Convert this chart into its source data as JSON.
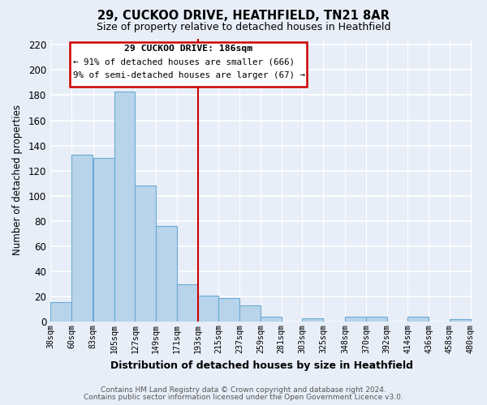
{
  "title": "29, CUCKOO DRIVE, HEATHFIELD, TN21 8AR",
  "subtitle": "Size of property relative to detached houses in Heathfield",
  "xlabel": "Distribution of detached houses by size in Heathfield",
  "ylabel": "Number of detached properties",
  "bar_color": "#b8d4ea",
  "bar_edge_color": "#6aaad4",
  "vline_color": "#cc0000",
  "annotation_title": "29 CUCKOO DRIVE: 186sqm",
  "annotation_line1": "← 91% of detached houses are smaller (666)",
  "annotation_line2": "9% of semi-detached houses are larger (67) →",
  "annotation_box_edge": "#cc0000",
  "bins_left": [
    38,
    60,
    83,
    105,
    127,
    149,
    171,
    193,
    215,
    237,
    259,
    281,
    303,
    325,
    348,
    370,
    392,
    414,
    436,
    458
  ],
  "bin_width": 22,
  "heights": [
    16,
    133,
    130,
    183,
    108,
    76,
    30,
    21,
    19,
    13,
    4,
    0,
    3,
    0,
    4,
    4,
    0,
    4,
    0,
    2
  ],
  "vline_bin_index": 7,
  "ylim": [
    0,
    225
  ],
  "yticks": [
    0,
    20,
    40,
    60,
    80,
    100,
    120,
    140,
    160,
    180,
    200,
    220
  ],
  "xtick_labels": [
    "38sqm",
    "60sqm",
    "83sqm",
    "105sqm",
    "127sqm",
    "149sqm",
    "171sqm",
    "193sqm",
    "215sqm",
    "237sqm",
    "259sqm",
    "281sqm",
    "303sqm",
    "325sqm",
    "348sqm",
    "370sqm",
    "392sqm",
    "414sqm",
    "436sqm",
    "458sqm",
    "480sqm"
  ],
  "footnote1": "Contains HM Land Registry data © Crown copyright and database right 2024.",
  "footnote2": "Contains public sector information licensed under the Open Government Licence v3.0.",
  "background_color": "#e8eef8",
  "plot_bg_color": "#e8eef8",
  "grid_color": "#ffffff"
}
